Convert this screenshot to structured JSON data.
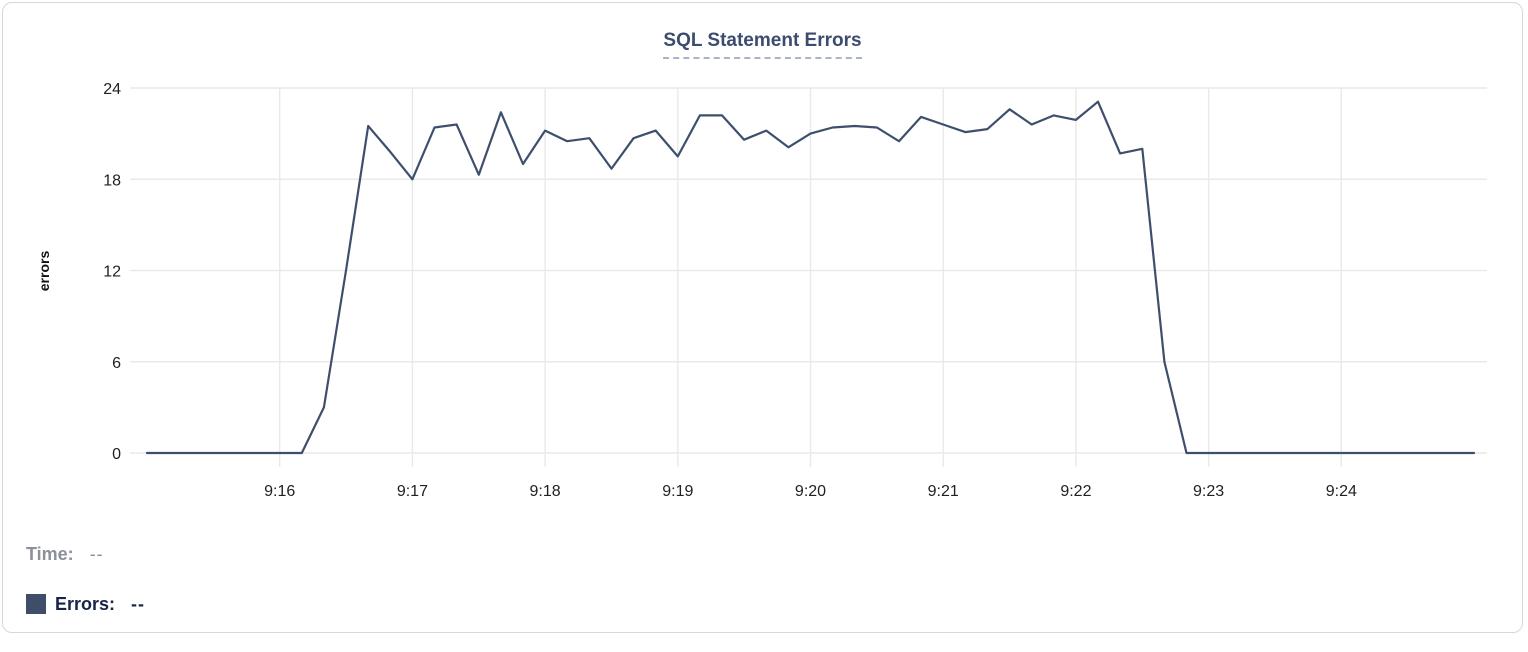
{
  "chart_data": {
    "type": "line",
    "title": "SQL Statement Errors",
    "ylabel": "errors",
    "series_name": "Errors",
    "x_interval_seconds": 10,
    "x": [
      "9:15:00",
      "9:15:10",
      "9:15:20",
      "9:15:30",
      "9:15:40",
      "9:15:50",
      "9:16:00",
      "9:16:10",
      "9:16:20",
      "9:16:30",
      "9:16:40",
      "9:16:50",
      "9:17:00",
      "9:17:10",
      "9:17:20",
      "9:17:30",
      "9:17:40",
      "9:17:50",
      "9:18:00",
      "9:18:10",
      "9:18:20",
      "9:18:30",
      "9:18:40",
      "9:18:50",
      "9:19:00",
      "9:19:10",
      "9:19:20",
      "9:19:30",
      "9:19:40",
      "9:19:50",
      "9:20:00",
      "9:20:10",
      "9:20:20",
      "9:20:30",
      "9:20:40",
      "9:20:50",
      "9:21:00",
      "9:21:10",
      "9:21:20",
      "9:21:30",
      "9:21:40",
      "9:21:50",
      "9:22:00",
      "9:22:10",
      "9:22:20",
      "9:22:30",
      "9:22:40",
      "9:22:50",
      "9:23:00",
      "9:23:10",
      "9:23:20",
      "9:23:30",
      "9:23:40",
      "9:23:50",
      "9:24:00",
      "9:24:10",
      "9:24:20",
      "9:24:30",
      "9:24:40",
      "9:24:50",
      "9:25:00"
    ],
    "values": [
      0,
      0,
      0,
      0,
      0,
      0,
      0,
      0,
      3,
      12,
      21.5,
      19.8,
      18,
      21.4,
      21.6,
      18.3,
      22.4,
      19,
      21.2,
      20.5,
      20.7,
      18.7,
      20.7,
      21.2,
      19.5,
      22.2,
      22.2,
      20.6,
      21.2,
      20.1,
      21,
      21.4,
      21.5,
      21.4,
      20.5,
      22.1,
      21.6,
      21.1,
      21.3,
      22.6,
      21.6,
      22.2,
      21.9,
      23.1,
      19.7,
      20,
      6,
      0,
      0,
      0,
      0,
      0,
      0,
      0,
      0,
      0,
      0,
      0,
      0,
      0,
      0
    ],
    "x_ticks": [
      {
        "label": "9:16",
        "time": "9:16:00"
      },
      {
        "label": "9:17",
        "time": "9:17:00"
      },
      {
        "label": "9:18",
        "time": "9:18:00"
      },
      {
        "label": "9:19",
        "time": "9:19:00"
      },
      {
        "label": "9:20",
        "time": "9:20:00"
      },
      {
        "label": "9:21",
        "time": "9:21:00"
      },
      {
        "label": "9:22",
        "time": "9:22:00"
      },
      {
        "label": "9:23",
        "time": "9:23:00"
      },
      {
        "label": "9:24",
        "time": "9:24:00"
      }
    ],
    "y_ticks": [
      0,
      6,
      12,
      18,
      24
    ],
    "ylim": [
      0,
      24
    ],
    "grid": true,
    "legend_position": "bottom-left",
    "line_color": "#3e4f6d"
  },
  "legend": {
    "time_label": "Time:",
    "time_value": "--",
    "errors_label": "Errors:",
    "errors_value": "--",
    "swatch_color": "#3e4d68"
  },
  "colors": {
    "title": "#3b4c6e",
    "title_underline": "#a9b4c7",
    "axis_text": "#202124",
    "grid": "#e8e9ea",
    "legend_time_text": "#8b9099",
    "legend_errors_text": "#172448",
    "card_border": "#d5d7da"
  }
}
